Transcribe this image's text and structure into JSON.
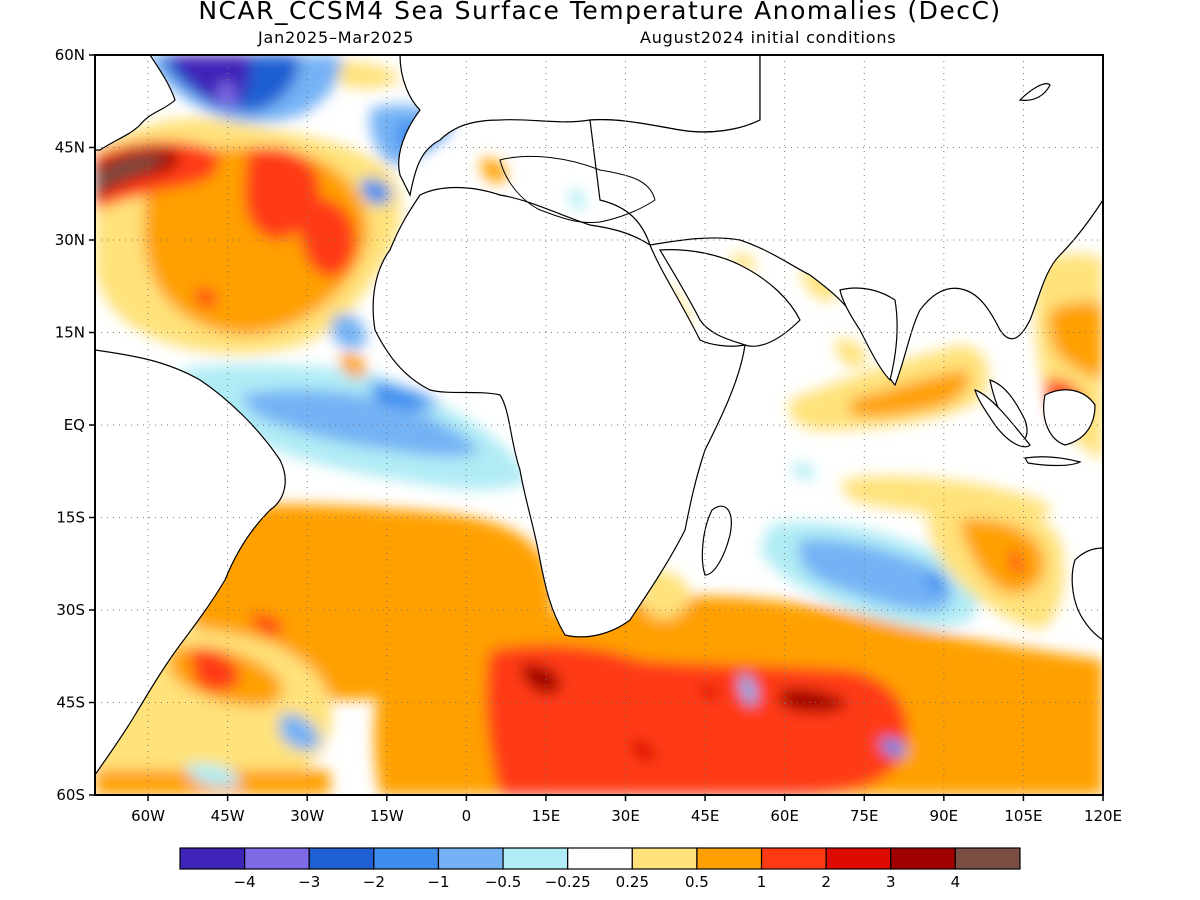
{
  "title": "NCAR_CCSM4 Sea Surface Temperature Anomalies (DecC)",
  "subtitle_left": "Jan2025–Mar2025",
  "subtitle_right": "August2024 initial conditions",
  "map": {
    "projection": "lat-lon",
    "lon_range": [
      -70,
      120
    ],
    "lat_range": [
      -60,
      60
    ],
    "grid": true,
    "lat_ticks": [
      {
        "value": 60,
        "label": "60N"
      },
      {
        "value": 45,
        "label": "45N"
      },
      {
        "value": 30,
        "label": "30N"
      },
      {
        "value": 15,
        "label": "15N"
      },
      {
        "value": 0,
        "label": "EQ"
      },
      {
        "value": -15,
        "label": "15S"
      },
      {
        "value": -30,
        "label": "30S"
      },
      {
        "value": -45,
        "label": "45S"
      },
      {
        "value": -60,
        "label": "60S"
      }
    ],
    "lon_ticks": [
      {
        "value": -60,
        "label": "60W"
      },
      {
        "value": -45,
        "label": "45W"
      },
      {
        "value": -30,
        "label": "30W"
      },
      {
        "value": -15,
        "label": "15W"
      },
      {
        "value": 0,
        "label": "0"
      },
      {
        "value": 15,
        "label": "15E"
      },
      {
        "value": 30,
        "label": "30E"
      },
      {
        "value": 45,
        "label": "45E"
      },
      {
        "value": 60,
        "label": "60E"
      },
      {
        "value": 75,
        "label": "75E"
      },
      {
        "value": 90,
        "label": "90E"
      },
      {
        "value": 105,
        "label": "105E"
      },
      {
        "value": 120,
        "label": "120E"
      }
    ]
  },
  "colorbar": {
    "colors": [
      "#3f22b8",
      "#7f6ae6",
      "#1e5fd2",
      "#3e8ef0",
      "#74b2f5",
      "#b0ecf5",
      "#ffffff",
      "#ffe27a",
      "#ffa000",
      "#ff3a12",
      "#dc0a00",
      "#a00000",
      "#7a4e40"
    ],
    "labels": [
      "-4",
      "-3",
      "-2",
      "-1",
      "-0.5",
      "-0.25",
      "0.25",
      "0.5",
      "1",
      "2",
      "3",
      "4"
    ]
  },
  "anomaly_regions": [
    {
      "lat": 40,
      "lon": -20,
      "level": 1,
      "color": "#ffa000"
    },
    {
      "lat": 43,
      "lon": -60,
      "level": 4,
      "color": "#7a4e40"
    },
    {
      "lat": 55,
      "lon": -45,
      "level": -4,
      "color": "#3f22b8"
    },
    {
      "lat": 5,
      "lon": -15,
      "level": -0.5,
      "color": "#74b2f5"
    },
    {
      "lat": -30,
      "lon": 0,
      "level": 1,
      "color": "#ffa000"
    },
    {
      "lat": -45,
      "lon": 45,
      "level": 2,
      "color": "#ff3a12"
    },
    {
      "lat": -28,
      "lon": 70,
      "level": -0.5,
      "color": "#74b2f5"
    },
    {
      "lat": 5,
      "lon": 80,
      "level": 1,
      "color": "#ffa000"
    },
    {
      "lat": 20,
      "lon": 115,
      "level": 1,
      "color": "#ffa000"
    }
  ]
}
